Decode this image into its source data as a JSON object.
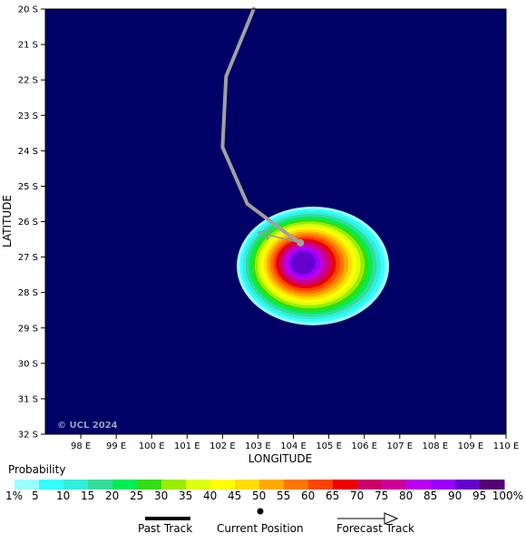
{
  "map": {
    "ocean_color": "#000066",
    "lat_labels": [
      "20 S",
      "21 S",
      "22 S",
      "23 S",
      "24 S",
      "25 S",
      "26 S",
      "27 S",
      "28 S",
      "29 S",
      "30 S",
      "31 S",
      "32 S"
    ],
    "lon_labels": [
      "98 E",
      "99 E",
      "100 E",
      "101 E",
      "102 E",
      "103 E",
      "104 E",
      "105 E",
      "106 E",
      "107 E",
      "108 E",
      "109 E",
      "110 E"
    ],
    "xlabel": "LONGITUDE",
    "ylabel": "LATITUDE",
    "copyright": "© UCL 2024",
    "lon_range": [
      97.0,
      110.0
    ],
    "lat_range": [
      -32.0,
      -20.0
    ]
  },
  "track": {
    "past": [
      [
        104.2,
        -26.6
      ],
      [
        103.9,
        -26.4
      ],
      [
        102.7,
        -25.5
      ],
      [
        102.0,
        -23.9
      ],
      [
        102.1,
        -21.9
      ],
      [
        102.9,
        -19.95
      ]
    ],
    "current_position": [
      104.2,
      -26.6
    ],
    "forecast": [
      [
        104.2,
        -26.6
      ],
      [
        103.0,
        -26.3
      ]
    ],
    "past_color": "#a0a0a0",
    "forecast_color": "#999999"
  },
  "probability": {
    "center": [
      104.55,
      -27.25
    ],
    "rx_per_level": 0.1,
    "ry_per_level": 0.075,
    "levels": [
      5,
      10,
      15,
      20,
      25,
      30,
      35,
      40,
      45,
      50,
      55,
      60,
      65,
      70,
      75,
      80,
      85,
      90,
      95
    ]
  },
  "legend": {
    "title": "Probability",
    "labels": [
      "1%",
      "5",
      "10",
      "15",
      "20",
      "25",
      "30",
      "35",
      "40",
      "45",
      "50",
      "55",
      "60",
      "65",
      "70",
      "75",
      "80",
      "85",
      "90",
      "95",
      "100%"
    ],
    "colors": [
      "#99ffff",
      "#33ffff",
      "#33eedd",
      "#33dd99",
      "#00ee55",
      "#33dd11",
      "#99ee00",
      "#ddff11",
      "#ffff00",
      "#ffdd00",
      "#ffaa00",
      "#ff7700",
      "#ff4400",
      "#ee0000",
      "#cc0066",
      "#cc0099",
      "#bb00ee",
      "#9900ff",
      "#6600cc",
      "#550077"
    ]
  },
  "key": {
    "past_label": "Past Track",
    "current_label": "Current Position",
    "forecast_label": "Forecast Track"
  }
}
